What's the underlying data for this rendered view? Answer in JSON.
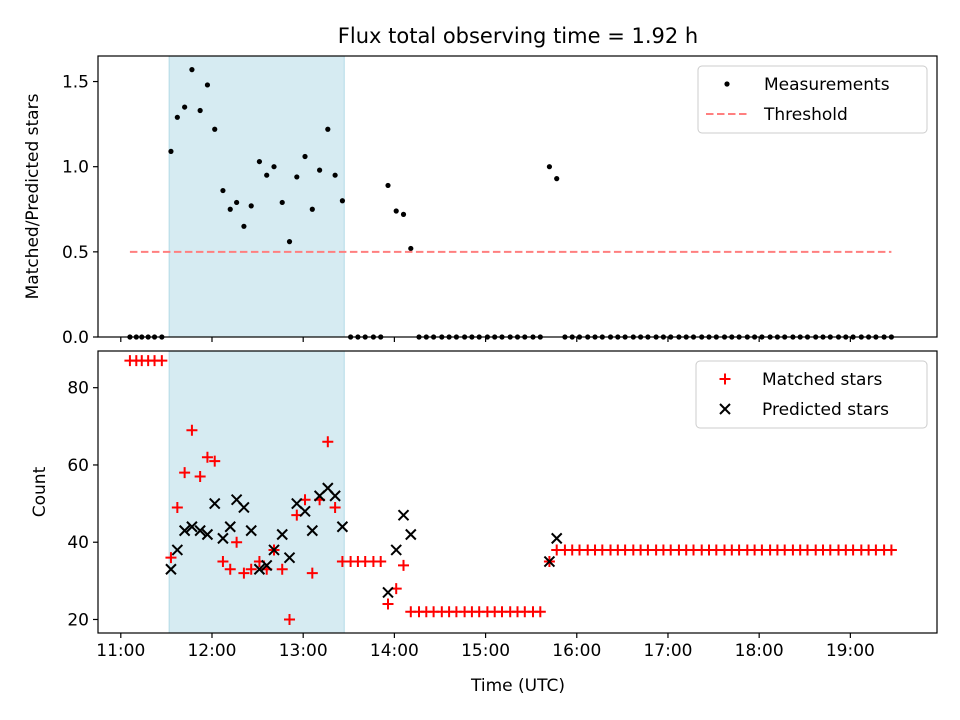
{
  "title": "Flux total observing time = 1.92 h",
  "x_axis": {
    "label": "Time (UTC)",
    "unit": "hours UTC",
    "range": [
      10.75,
      19.95
    ],
    "ticks": [
      11,
      12,
      13,
      14,
      15,
      16,
      17,
      18,
      19
    ],
    "tick_labels": [
      "11:00",
      "12:00",
      "13:00",
      "14:00",
      "15:00",
      "16:00",
      "17:00",
      "18:00",
      "19:00"
    ]
  },
  "observing_window": {
    "start": 11.53,
    "end": 13.45,
    "color": "#add8e6"
  },
  "chart_data": [
    {
      "type": "scatter",
      "ylabel": "Matched/Predicted stars",
      "ylim": [
        0,
        1.65
      ],
      "yticks": [
        0.0,
        0.5,
        1.0,
        1.5
      ],
      "ytick_labels": [
        "0.0",
        "0.5",
        "1.0",
        "1.5"
      ],
      "legend": {
        "placement": "top-right"
      },
      "series": [
        {
          "name": "Measurements",
          "kind": "points",
          "color": "#000000",
          "points": [
            [
              11.1,
              0
            ],
            [
              11.17,
              0
            ],
            [
              11.23,
              0
            ],
            [
              11.3,
              0
            ],
            [
              11.37,
              0
            ],
            [
              11.45,
              0
            ],
            [
              11.55,
              1.09
            ],
            [
              11.62,
              1.29
            ],
            [
              11.7,
              1.35
            ],
            [
              11.78,
              1.57
            ],
            [
              11.87,
              1.33
            ],
            [
              11.95,
              1.48
            ],
            [
              12.03,
              1.22
            ],
            [
              12.12,
              0.86
            ],
            [
              12.2,
              0.75
            ],
            [
              12.27,
              0.79
            ],
            [
              12.35,
              0.65
            ],
            [
              12.43,
              0.77
            ],
            [
              12.52,
              1.03
            ],
            [
              12.6,
              0.95
            ],
            [
              12.68,
              1.0
            ],
            [
              12.77,
              0.79
            ],
            [
              12.85,
              0.56
            ],
            [
              12.93,
              0.94
            ],
            [
              13.02,
              1.06
            ],
            [
              13.1,
              0.75
            ],
            [
              13.18,
              0.98
            ],
            [
              13.27,
              1.22
            ],
            [
              13.35,
              0.95
            ],
            [
              13.43,
              0.8
            ],
            [
              13.52,
              0
            ],
            [
              13.6,
              0
            ],
            [
              13.68,
              0
            ],
            [
              13.77,
              0
            ],
            [
              13.85,
              0
            ],
            [
              13.93,
              0.89
            ],
            [
              14.02,
              0.74
            ],
            [
              14.1,
              0.72
            ],
            [
              14.18,
              0.52
            ],
            [
              14.27,
              0
            ],
            [
              14.35,
              0
            ],
            [
              14.43,
              0
            ],
            [
              14.52,
              0
            ],
            [
              14.6,
              0
            ],
            [
              14.68,
              0
            ],
            [
              14.77,
              0
            ],
            [
              14.85,
              0
            ],
            [
              14.93,
              0
            ],
            [
              15.02,
              0
            ],
            [
              15.1,
              0
            ],
            [
              15.18,
              0
            ],
            [
              15.27,
              0
            ],
            [
              15.35,
              0
            ],
            [
              15.43,
              0
            ],
            [
              15.52,
              0
            ],
            [
              15.6,
              0
            ],
            [
              15.7,
              1.0
            ],
            [
              15.78,
              0.93
            ],
            [
              15.87,
              0
            ],
            [
              15.95,
              0
            ],
            [
              16.03,
              0
            ],
            [
              16.12,
              0
            ],
            [
              16.2,
              0
            ],
            [
              16.28,
              0
            ],
            [
              16.37,
              0
            ],
            [
              16.45,
              0
            ],
            [
              16.53,
              0
            ],
            [
              16.62,
              0
            ],
            [
              16.7,
              0
            ],
            [
              16.78,
              0
            ],
            [
              16.87,
              0
            ],
            [
              16.95,
              0
            ],
            [
              17.03,
              0
            ],
            [
              17.12,
              0
            ],
            [
              17.2,
              0
            ],
            [
              17.28,
              0
            ],
            [
              17.37,
              0
            ],
            [
              17.45,
              0
            ],
            [
              17.53,
              0
            ],
            [
              17.62,
              0
            ],
            [
              17.7,
              0
            ],
            [
              17.78,
              0
            ],
            [
              17.87,
              0
            ],
            [
              17.95,
              0
            ],
            [
              18.03,
              0
            ],
            [
              18.12,
              0
            ],
            [
              18.2,
              0
            ],
            [
              18.28,
              0
            ],
            [
              18.37,
              0
            ],
            [
              18.45,
              0
            ],
            [
              18.53,
              0
            ],
            [
              18.62,
              0
            ],
            [
              18.7,
              0
            ],
            [
              18.78,
              0
            ],
            [
              18.87,
              0
            ],
            [
              18.95,
              0
            ],
            [
              19.03,
              0
            ],
            [
              19.12,
              0
            ],
            [
              19.2,
              0
            ],
            [
              19.28,
              0
            ],
            [
              19.37,
              0
            ],
            [
              19.45,
              0
            ]
          ]
        },
        {
          "name": "Threshold",
          "kind": "dashed-line",
          "color": "#ff7f7f",
          "points": [
            [
              11.1,
              0.5
            ],
            [
              19.45,
              0.5
            ]
          ]
        }
      ]
    },
    {
      "type": "scatter",
      "ylabel": "Count",
      "ylim": [
        16.5,
        89.5
      ],
      "yticks": [
        20,
        40,
        60,
        80
      ],
      "ytick_labels": [
        "20",
        "40",
        "60",
        "80"
      ],
      "legend": {
        "placement": "top-right"
      },
      "series": [
        {
          "name": "Matched stars",
          "kind": "plus",
          "color": "#ff0000",
          "points": [
            [
              11.1,
              87
            ],
            [
              11.17,
              87
            ],
            [
              11.23,
              87
            ],
            [
              11.3,
              87
            ],
            [
              11.37,
              87
            ],
            [
              11.45,
              87
            ],
            [
              11.55,
              36
            ],
            [
              11.62,
              49
            ],
            [
              11.7,
              58
            ],
            [
              11.78,
              69
            ],
            [
              11.87,
              57
            ],
            [
              11.95,
              62
            ],
            [
              12.03,
              61
            ],
            [
              12.12,
              35
            ],
            [
              12.2,
              33
            ],
            [
              12.27,
              40
            ],
            [
              12.35,
              32
            ],
            [
              12.43,
              33
            ],
            [
              12.52,
              35
            ],
            [
              12.6,
              33
            ],
            [
              12.68,
              38
            ],
            [
              12.77,
              33
            ],
            [
              12.85,
              20
            ],
            [
              12.93,
              47
            ],
            [
              13.02,
              51
            ],
            [
              13.1,
              32
            ],
            [
              13.18,
              51
            ],
            [
              13.27,
              66
            ],
            [
              13.35,
              49
            ],
            [
              13.43,
              35
            ],
            [
              13.52,
              35
            ],
            [
              13.6,
              35
            ],
            [
              13.68,
              35
            ],
            [
              13.77,
              35
            ],
            [
              13.85,
              35
            ],
            [
              13.93,
              24
            ],
            [
              14.02,
              28
            ],
            [
              14.1,
              34
            ],
            [
              14.18,
              22
            ],
            [
              14.27,
              22
            ],
            [
              14.35,
              22
            ],
            [
              14.43,
              22
            ],
            [
              14.52,
              22
            ],
            [
              14.6,
              22
            ],
            [
              14.68,
              22
            ],
            [
              14.77,
              22
            ],
            [
              14.85,
              22
            ],
            [
              14.93,
              22
            ],
            [
              15.02,
              22
            ],
            [
              15.1,
              22
            ],
            [
              15.18,
              22
            ],
            [
              15.27,
              22
            ],
            [
              15.35,
              22
            ],
            [
              15.43,
              22
            ],
            [
              15.52,
              22
            ],
            [
              15.6,
              22
            ],
            [
              15.7,
              35
            ],
            [
              15.78,
              38
            ],
            [
              15.87,
              38
            ],
            [
              15.95,
              38
            ],
            [
              16.03,
              38
            ],
            [
              16.12,
              38
            ],
            [
              16.2,
              38
            ],
            [
              16.28,
              38
            ],
            [
              16.37,
              38
            ],
            [
              16.45,
              38
            ],
            [
              16.53,
              38
            ],
            [
              16.62,
              38
            ],
            [
              16.7,
              38
            ],
            [
              16.78,
              38
            ],
            [
              16.87,
              38
            ],
            [
              16.95,
              38
            ],
            [
              17.03,
              38
            ],
            [
              17.12,
              38
            ],
            [
              17.2,
              38
            ],
            [
              17.28,
              38
            ],
            [
              17.37,
              38
            ],
            [
              17.45,
              38
            ],
            [
              17.53,
              38
            ],
            [
              17.62,
              38
            ],
            [
              17.7,
              38
            ],
            [
              17.78,
              38
            ],
            [
              17.87,
              38
            ],
            [
              17.95,
              38
            ],
            [
              18.03,
              38
            ],
            [
              18.12,
              38
            ],
            [
              18.2,
              38
            ],
            [
              18.28,
              38
            ],
            [
              18.37,
              38
            ],
            [
              18.45,
              38
            ],
            [
              18.53,
              38
            ],
            [
              18.62,
              38
            ],
            [
              18.7,
              38
            ],
            [
              18.78,
              38
            ],
            [
              18.87,
              38
            ],
            [
              18.95,
              38
            ],
            [
              19.03,
              38
            ],
            [
              19.12,
              38
            ],
            [
              19.2,
              38
            ],
            [
              19.28,
              38
            ],
            [
              19.37,
              38
            ],
            [
              19.45,
              38
            ]
          ]
        },
        {
          "name": "Predicted stars",
          "kind": "cross",
          "color": "#000000",
          "points": [
            [
              11.55,
              33
            ],
            [
              11.62,
              38
            ],
            [
              11.7,
              43
            ],
            [
              11.78,
              44
            ],
            [
              11.87,
              43
            ],
            [
              11.95,
              42
            ],
            [
              12.03,
              50
            ],
            [
              12.12,
              41
            ],
            [
              12.2,
              44
            ],
            [
              12.27,
              51
            ],
            [
              12.35,
              49
            ],
            [
              12.43,
              43
            ],
            [
              12.52,
              33
            ],
            [
              12.6,
              34
            ],
            [
              12.68,
              38
            ],
            [
              12.77,
              42
            ],
            [
              12.85,
              36
            ],
            [
              12.93,
              50
            ],
            [
              13.02,
              48
            ],
            [
              13.1,
              43
            ],
            [
              13.18,
              52
            ],
            [
              13.27,
              54
            ],
            [
              13.35,
              52
            ],
            [
              13.43,
              44
            ],
            [
              13.93,
              27
            ],
            [
              14.02,
              38
            ],
            [
              14.1,
              47
            ],
            [
              14.18,
              42
            ],
            [
              15.7,
              35
            ],
            [
              15.78,
              41
            ]
          ]
        }
      ]
    }
  ]
}
